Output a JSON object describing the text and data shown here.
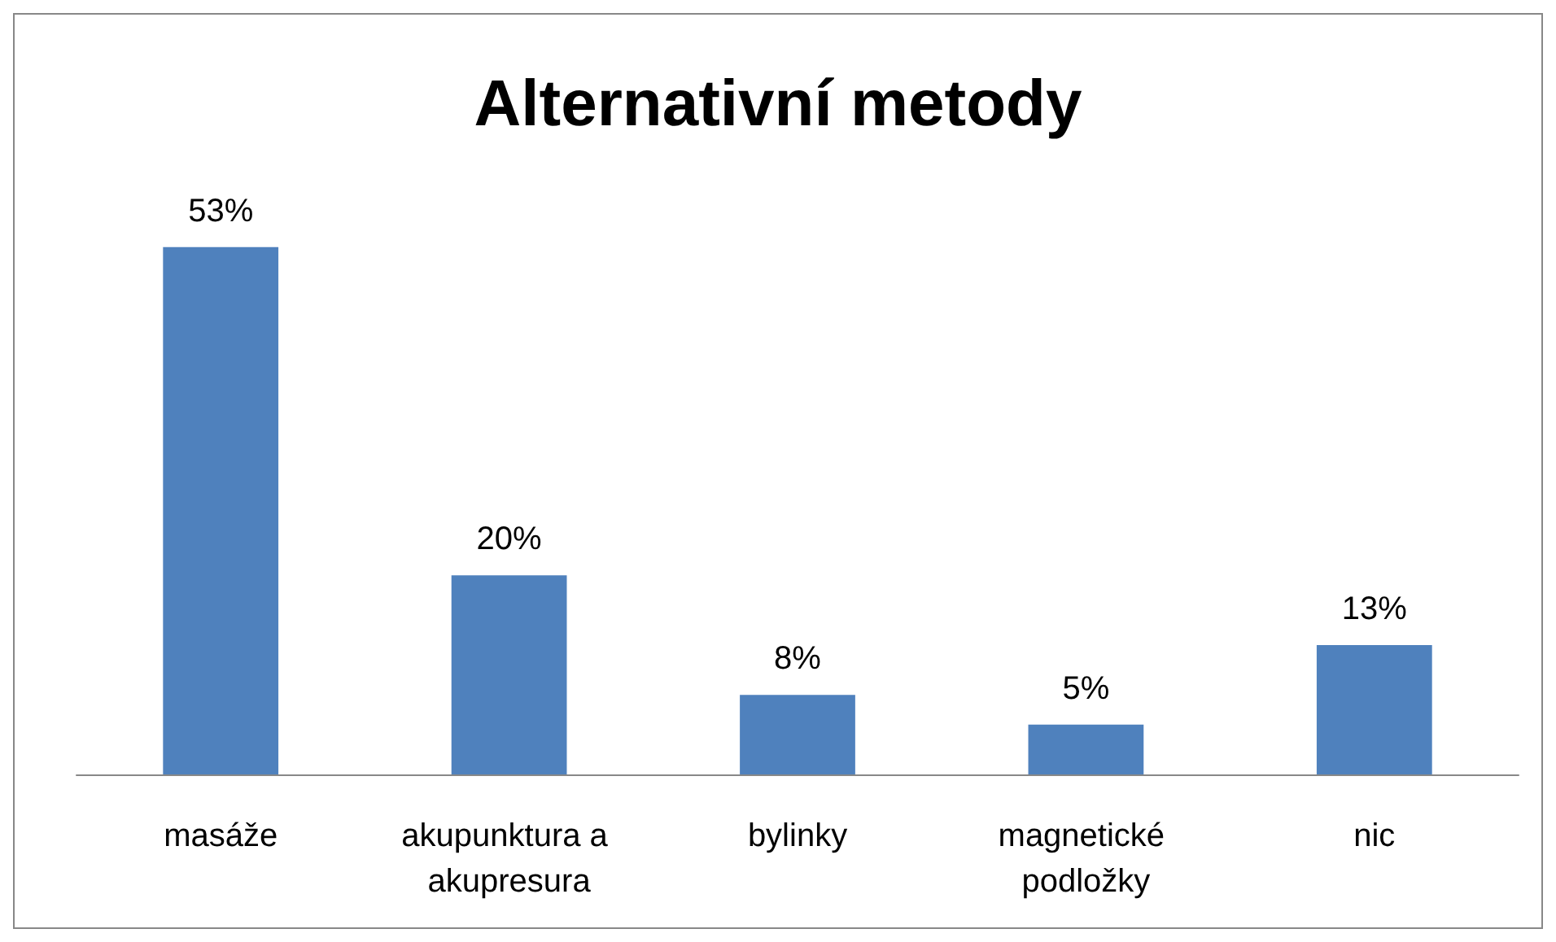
{
  "chart_data": {
    "type": "bar",
    "title": "Alternativní metody",
    "categories": [
      "masáže",
      "akupunktura a akupresura",
      "bylinky",
      "magnetické podložky",
      "nic"
    ],
    "values": [
      53,
      20,
      8,
      5,
      13
    ],
    "value_labels": [
      "53%",
      "20%",
      "8%",
      "5%",
      "13%"
    ],
    "color": "#4f81bd"
  }
}
